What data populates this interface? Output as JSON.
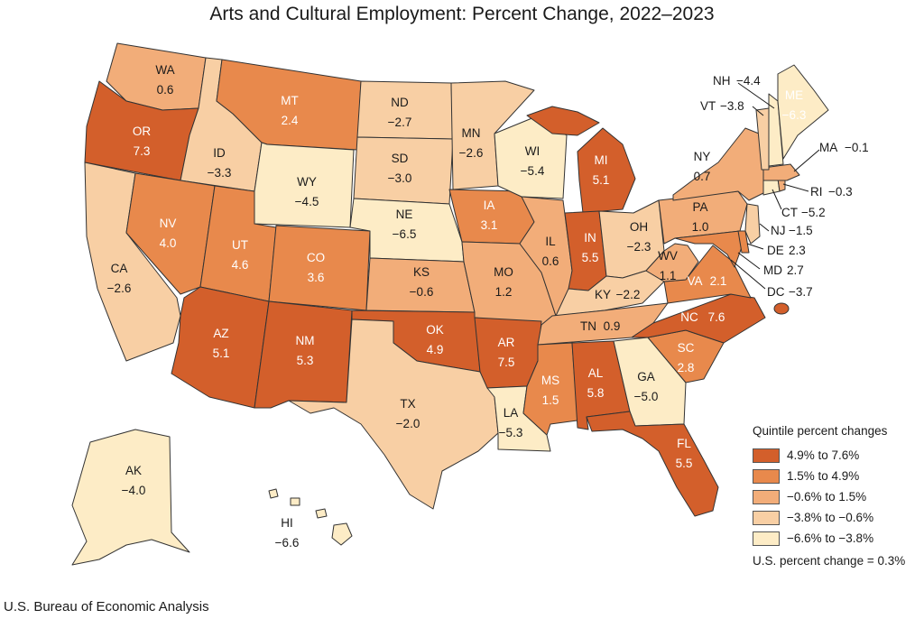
{
  "title": "Arts and Cultural Employment: Percent Change, 2022–2023",
  "source": "U.S. Bureau of Economic Analysis",
  "legend": {
    "title": "Quintile percent changes",
    "items": [
      {
        "label": "4.9% to 7.6%",
        "color": "#d35f2b"
      },
      {
        "label": "1.5% to 4.9%",
        "color": "#e8894c"
      },
      {
        "label": "−0.6% to 1.5%",
        "color": "#f2ad79"
      },
      {
        "label": "−3.8% to −0.6%",
        "color": "#f8cfa4"
      },
      {
        "label": "−6.6% to −3.8%",
        "color": "#fdecc6"
      }
    ],
    "us_change": "U.S. percent change = 0.3%"
  },
  "states": {
    "WA": {
      "abbr": "WA",
      "value": "0.6",
      "q": 2
    },
    "OR": {
      "abbr": "OR",
      "value": "7.3",
      "q": 0
    },
    "CA": {
      "abbr": "CA",
      "value": "−2.6",
      "q": 3
    },
    "ID": {
      "abbr": "ID",
      "value": "−3.3",
      "q": 3
    },
    "NV": {
      "abbr": "NV",
      "value": "4.0",
      "q": 1
    },
    "MT": {
      "abbr": "MT",
      "value": "2.4",
      "q": 1
    },
    "WY": {
      "abbr": "WY",
      "value": "−4.5",
      "q": 4
    },
    "UT": {
      "abbr": "UT",
      "value": "4.6",
      "q": 1
    },
    "AZ": {
      "abbr": "AZ",
      "value": "5.1",
      "q": 0
    },
    "CO": {
      "abbr": "CO",
      "value": "3.6",
      "q": 1
    },
    "NM": {
      "abbr": "NM",
      "value": "5.3",
      "q": 0
    },
    "ND": {
      "abbr": "ND",
      "value": "−2.7",
      "q": 3
    },
    "SD": {
      "abbr": "SD",
      "value": "−3.0",
      "q": 3
    },
    "NE": {
      "abbr": "NE",
      "value": "−6.5",
      "q": 4
    },
    "KS": {
      "abbr": "KS",
      "value": "−0.6",
      "q": 2
    },
    "OK": {
      "abbr": "OK",
      "value": "4.9",
      "q": 0
    },
    "TX": {
      "abbr": "TX",
      "value": "−2.0",
      "q": 3
    },
    "MN": {
      "abbr": "MN",
      "value": "−2.6",
      "q": 3
    },
    "IA": {
      "abbr": "IA",
      "value": "3.1",
      "q": 1
    },
    "MO": {
      "abbr": "MO",
      "value": "1.2",
      "q": 2
    },
    "AR": {
      "abbr": "AR",
      "value": "7.5",
      "q": 0
    },
    "LA": {
      "abbr": "LA",
      "value": "−5.3",
      "q": 4
    },
    "WI": {
      "abbr": "WI",
      "value": "−5.4",
      "q": 4
    },
    "IL": {
      "abbr": "IL",
      "value": "0.6",
      "q": 2
    },
    "MI": {
      "abbr": "MI",
      "value": "5.1",
      "q": 0
    },
    "IN": {
      "abbr": "IN",
      "value": "5.5",
      "q": 0
    },
    "OH": {
      "abbr": "OH",
      "value": "−2.3",
      "q": 3
    },
    "KY": {
      "abbr": "KY",
      "value": "−2.2",
      "q": 3
    },
    "TN": {
      "abbr": "TN",
      "value": "0.9",
      "q": 2
    },
    "MS": {
      "abbr": "MS",
      "value": "1.5",
      "q": 1
    },
    "AL": {
      "abbr": "AL",
      "value": "5.8",
      "q": 0
    },
    "GA": {
      "abbr": "GA",
      "value": "−5.0",
      "q": 4
    },
    "FL": {
      "abbr": "FL",
      "value": "5.5",
      "q": 0
    },
    "SC": {
      "abbr": "SC",
      "value": "2.8",
      "q": 1
    },
    "NC": {
      "abbr": "NC",
      "value": "7.6",
      "q": 0
    },
    "VA": {
      "abbr": "VA",
      "value": "2.1",
      "q": 1
    },
    "WV": {
      "abbr": "WV",
      "value": "1.1",
      "q": 2
    },
    "PA": {
      "abbr": "PA",
      "value": "1.0",
      "q": 2
    },
    "NY": {
      "abbr": "NY",
      "value": "0.7",
      "q": 2
    },
    "VT": {
      "abbr": "VT",
      "value": "−3.8",
      "q": 3
    },
    "NH": {
      "abbr": "NH",
      "value": "−4.4",
      "q": 4
    },
    "ME": {
      "abbr": "ME",
      "value": "−6.3",
      "q": 4
    },
    "MA": {
      "abbr": "MA",
      "value": "−0.1",
      "q": 2
    },
    "RI": {
      "abbr": "RI",
      "value": "−0.3",
      "q": 2
    },
    "CT": {
      "abbr": "CT",
      "value": "−5.2",
      "q": 4
    },
    "NJ": {
      "abbr": "NJ",
      "value": "−1.5",
      "q": 3
    },
    "DE": {
      "abbr": "DE",
      "value": "2.3",
      "q": 1
    },
    "MD": {
      "abbr": "MD",
      "value": "2.7",
      "q": 1
    },
    "DC": {
      "abbr": "DC",
      "value": "−3.7",
      "q": 3
    },
    "AK": {
      "abbr": "AK",
      "value": "−4.0",
      "q": 4
    },
    "HI": {
      "abbr": "HI",
      "value": "−6.6",
      "q": 4
    }
  }
}
